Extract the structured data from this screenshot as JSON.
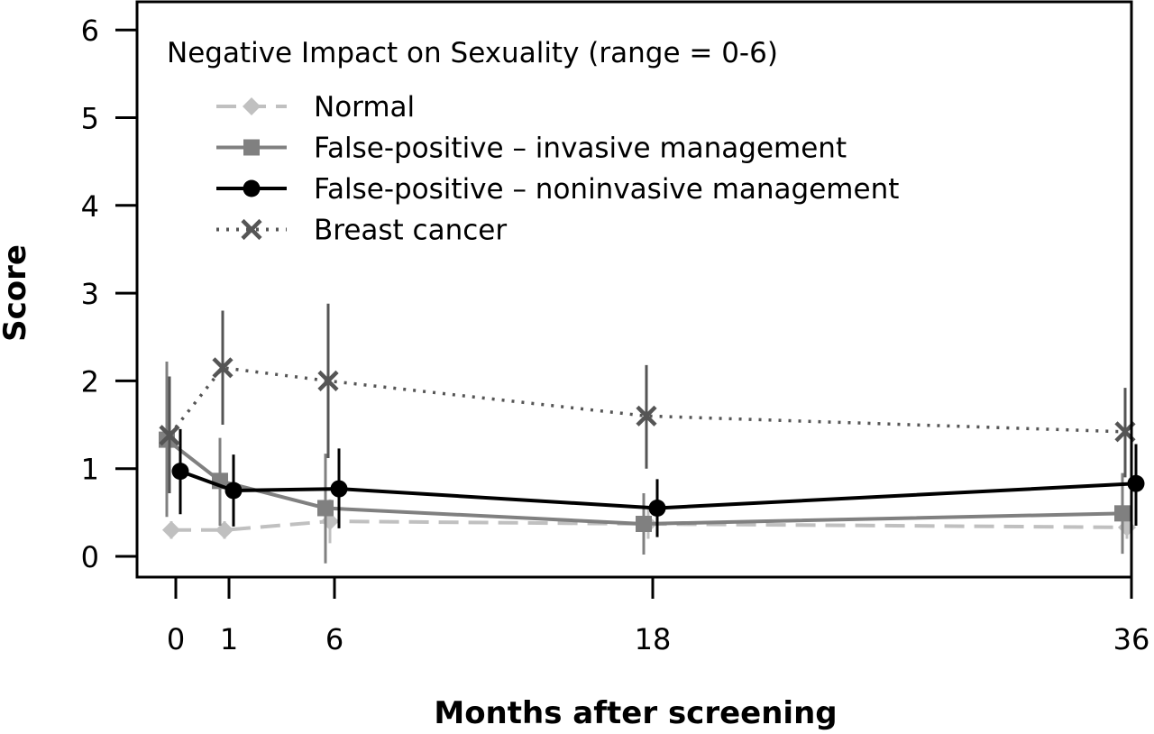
{
  "chart_data": {
    "type": "line",
    "title": "",
    "xlabel": "Months after screening",
    "ylabel": "Score",
    "annotation": "Negative Impact on Sexuality (range = 0-6)",
    "x": [
      0,
      1,
      6,
      18,
      36
    ],
    "x_ticks": [
      "0",
      "1",
      "6",
      "18",
      "36"
    ],
    "y_ticks": [
      "0",
      "1",
      "2",
      "3",
      "4",
      "5",
      "6"
    ],
    "ylim": [
      0,
      6
    ],
    "grid": false,
    "legend_position": "top-left",
    "series": [
      {
        "name": "Normal",
        "color": "#c0c0c0",
        "line_style": "dashed",
        "marker": "diamond",
        "values": [
          0.3,
          0.3,
          0.4,
          0.37,
          0.33
        ],
        "ci_low": [
          0.2,
          0.2,
          0.15,
          0.2,
          0.2
        ],
        "ci_high": [
          0.4,
          0.4,
          0.65,
          0.55,
          0.5
        ]
      },
      {
        "name": "False-positive – invasive management",
        "color": "#808080",
        "line_style": "solid",
        "marker": "square",
        "values": [
          1.33,
          0.86,
          0.55,
          0.37,
          0.49
        ],
        "ci_low": [
          0.45,
          0.35,
          -0.08,
          0.02,
          0.03
        ],
        "ci_high": [
          2.22,
          1.35,
          1.17,
          0.72,
          0.95
        ]
      },
      {
        "name": "False-positive – noninvasive management",
        "color": "#000000",
        "line_style": "solid",
        "marker": "circle",
        "values": [
          0.97,
          0.75,
          0.77,
          0.55,
          0.83
        ],
        "ci_low": [
          0.48,
          0.34,
          0.32,
          0.22,
          0.35
        ],
        "ci_high": [
          1.45,
          1.16,
          1.23,
          0.88,
          1.28
        ]
      },
      {
        "name": "Breast cancer",
        "color": "#555555",
        "line_style": "dotted",
        "marker": "x",
        "values": [
          1.38,
          2.15,
          2.0,
          1.6,
          1.42
        ],
        "ci_low": [
          0.72,
          1.5,
          1.12,
          1.0,
          0.9
        ],
        "ci_high": [
          2.05,
          2.8,
          2.88,
          2.18,
          1.92
        ]
      }
    ]
  }
}
